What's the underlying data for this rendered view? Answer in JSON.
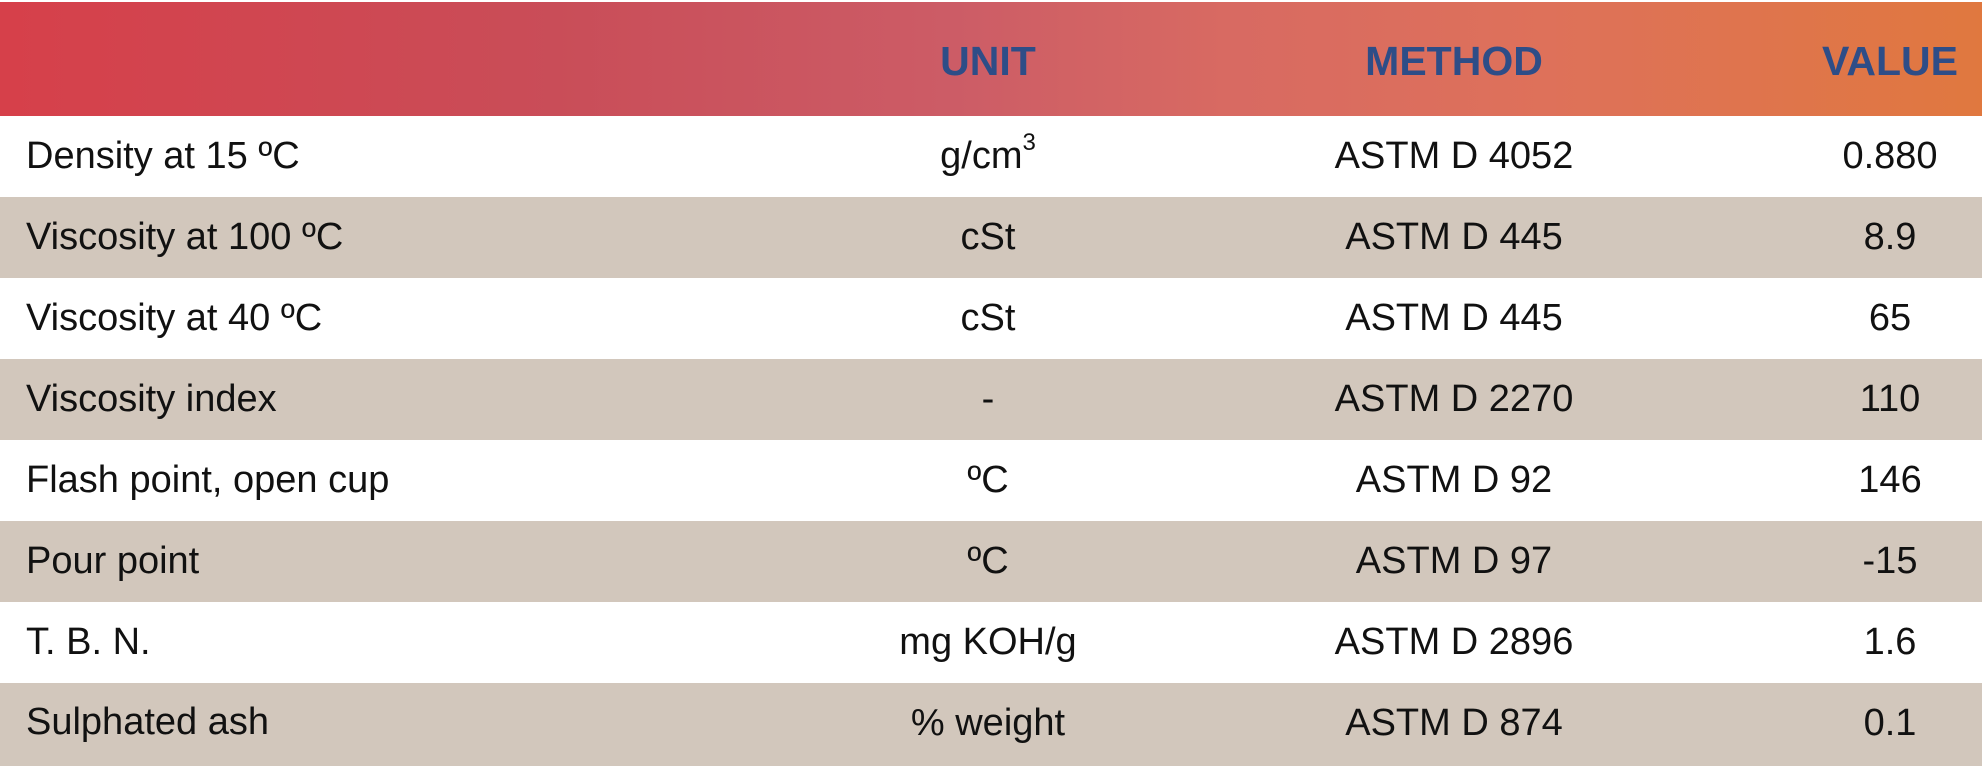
{
  "header": {
    "unit": "UNIT",
    "method": "METHOD",
    "value": "VALUE"
  },
  "rows": [
    {
      "property": "Density at 15 ºC",
      "unit": "g/cm",
      "unit_sup": "3",
      "method": "ASTM D 4052",
      "value": "0.880"
    },
    {
      "property": "Viscosity at 100 ºC",
      "unit": "cSt",
      "method": "ASTM D 445",
      "value": "8.9"
    },
    {
      "property": "Viscosity at 40 ºC",
      "unit": "cSt",
      "method": "ASTM D 445",
      "value": "65"
    },
    {
      "property": "Viscosity index",
      "unit": "-",
      "method": "ASTM D 2270",
      "value": "110"
    },
    {
      "property": "Flash point, open cup",
      "unit": "ºC",
      "method": "ASTM D 92",
      "value": "146"
    },
    {
      "property": "Pour point",
      "unit": "ºC",
      "method": "ASTM D 97",
      "value": "-15"
    },
    {
      "property": "T. B. N.",
      "unit": "mg KOH/g",
      "method": "ASTM D 2896",
      "value": "1.6"
    },
    {
      "property": "Sulphated ash",
      "unit": "% weight",
      "method": "ASTM D 874",
      "value": "0.1"
    }
  ],
  "colors": {
    "header_text": "#2e4d87",
    "row_shade": "#d2c7bc",
    "header_gradient_start": "#d6404a",
    "header_gradient_end": "#e0783f"
  }
}
